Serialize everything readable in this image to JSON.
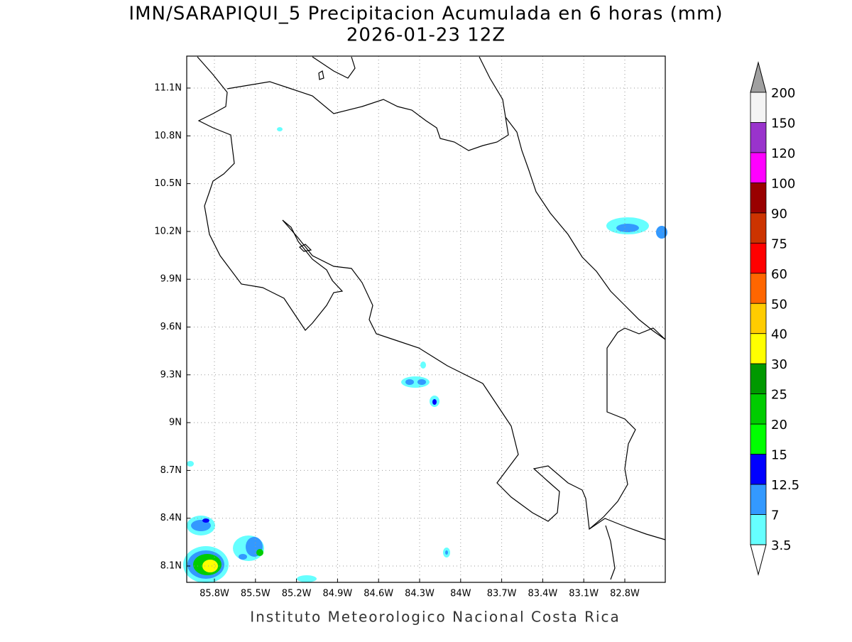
{
  "title": "IMN/SARAPIQUI_5 Precipitacion Acumulada en 6 horas (mm)",
  "subtitle": "2026-01-23 12Z",
  "lat_labels": [
    "11.1N",
    "10.8N",
    "10.5N",
    "10.2N",
    "9.9N",
    "9.6N",
    "9.3N",
    "9N",
    "8.7N",
    "8.4N",
    "8.1N"
  ],
  "lon_labels": [
    "85.8W",
    "85.5W",
    "85.2W",
    "84.9W",
    "84.6W",
    "84.3W",
    "84W",
    "83.7W",
    "83.4W",
    "83.1W",
    "82.8W"
  ],
  "colorbar": {
    "levels": [
      200,
      150,
      120,
      100,
      90,
      75,
      60,
      50,
      40,
      30,
      25,
      20,
      15,
      12.5,
      7,
      3.5
    ],
    "colors": [
      "#f4f4f4",
      "#9933cc",
      "#ff00ff",
      "#990000",
      "#cc3300",
      "#ff0000",
      "#ff6600",
      "#ffcc00",
      "#ffff00",
      "#009900",
      "#00cc00",
      "#00ff00",
      "#0000ff",
      "#3399ff",
      "#66ffff"
    ],
    "over_color": "#a0a0a0",
    "under_color": "#ffffff"
  },
  "footer": "Instituto Meteorologico Nacional Costa Rica"
}
